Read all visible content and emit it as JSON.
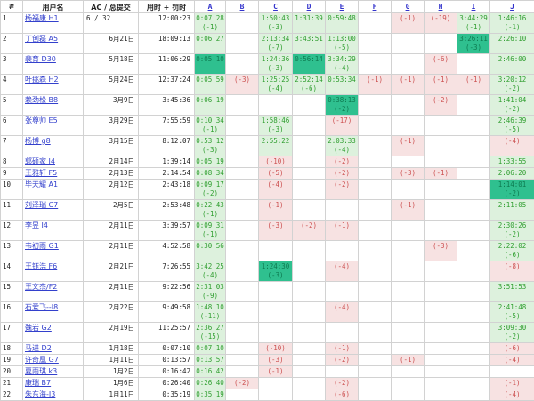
{
  "table": {
    "headers": {
      "rank": "#",
      "user": "用户名",
      "submissions": "AC / 总提交",
      "time": "用时 + 罚时"
    },
    "problems": [
      "A",
      "B",
      "C",
      "D",
      "E",
      "F",
      "G",
      "H",
      "I",
      "J"
    ],
    "colors": {
      "solved_bg": "#ddf1dd",
      "solved_text": "#2f9e2f",
      "first_solve_bg": "#2fc08f",
      "first_solve_text": "#0d7a50",
      "failed_bg": "#f7e2e2",
      "failed_text": "#cc5050",
      "link": "#3333cc"
    },
    "rows": [
      {
        "rank": "1",
        "user": "杨福康 H1",
        "sub": "6 / 32",
        "subLeft": true,
        "time": "12:00:23",
        "cells": {
          "A": {
            "t": "0:07:28",
            "p": "(-1)",
            "s": "ac"
          },
          "C": {
            "t": "1:50:43",
            "p": "(-3)",
            "s": "ac"
          },
          "D": {
            "t": "1:31:39",
            "s": "ac"
          },
          "E": {
            "t": "0:59:48",
            "s": "ac"
          },
          "G": {
            "p": "(-1)",
            "s": "fail"
          },
          "H": {
            "p": "(-19)",
            "s": "fail"
          },
          "I": {
            "t": "3:44:29",
            "p": "(-1)",
            "s": "ac"
          },
          "J": {
            "t": "1:46:16",
            "p": "(-1)",
            "s": "ac"
          }
        }
      },
      {
        "rank": "2",
        "user": "丁创磊 A5",
        "sub": "6月21日",
        "time": "18:09:13",
        "cells": {
          "A": {
            "t": "0:06:27",
            "s": "ac"
          },
          "C": {
            "t": "2:13:34",
            "p": "(-7)",
            "s": "ac"
          },
          "D": {
            "t": "3:43:51",
            "s": "ac"
          },
          "E": {
            "t": "1:13:00",
            "p": "(-5)",
            "s": "ac"
          },
          "I": {
            "t": "3:26:11",
            "p": "(-3)",
            "s": "first"
          },
          "J": {
            "t": "2:26:10",
            "s": "ac"
          }
        }
      },
      {
        "rank": "3",
        "user": "裴育 D30",
        "sub": "5月18日",
        "time": "11:06:29",
        "cells": {
          "A": {
            "t": "0:05:10",
            "s": "first"
          },
          "C": {
            "t": "1:24:36",
            "p": "(-3)",
            "s": "ac"
          },
          "D": {
            "t": "0:56:14",
            "s": "first"
          },
          "E": {
            "t": "3:34:29",
            "p": "(-4)",
            "s": "ac"
          },
          "H": {
            "p": "(-6)",
            "s": "fail"
          },
          "J": {
            "t": "2:46:00",
            "s": "ac"
          }
        }
      },
      {
        "rank": "4",
        "user": "叶挑森 H2",
        "sub": "5月24日",
        "time": "12:37:24",
        "cells": {
          "A": {
            "t": "0:05:59",
            "s": "ac"
          },
          "B": {
            "p": "(-3)",
            "s": "fail"
          },
          "C": {
            "t": "1:25:25",
            "p": "(-4)",
            "s": "ac"
          },
          "D": {
            "t": "2:52:14",
            "p": "(-6)",
            "s": "ac"
          },
          "E": {
            "t": "0:53:34",
            "s": "ac"
          },
          "F": {
            "p": "(-1)",
            "s": "fail"
          },
          "G": {
            "p": "(-1)",
            "s": "fail"
          },
          "H": {
            "p": "(-1)",
            "s": "fail"
          },
          "I": {
            "p": "(-1)",
            "s": "fail"
          },
          "J": {
            "t": "3:20:12",
            "p": "(-2)",
            "s": "ac"
          }
        }
      },
      {
        "rank": "5",
        "user": "赖劲松 B8",
        "sub": "3月9日",
        "time": "3:45:36",
        "cells": {
          "A": {
            "t": "0:06:19",
            "s": "ac"
          },
          "E": {
            "t": "0:38:13",
            "p": "(-2)",
            "s": "first"
          },
          "H": {
            "p": "(-2)",
            "s": "fail"
          },
          "J": {
            "t": "1:41:04",
            "p": "(-2)",
            "s": "ac"
          }
        }
      },
      {
        "rank": "6",
        "user": "张尊帅 E5",
        "sub": "3月29日",
        "time": "7:55:59",
        "cells": {
          "A": {
            "t": "0:10:34",
            "p": "(-1)",
            "s": "ac"
          },
          "C": {
            "t": "1:58:46",
            "p": "(-3)",
            "s": "ac"
          },
          "E": {
            "p": "(-17)",
            "s": "fail"
          },
          "J": {
            "t": "2:46:39",
            "p": "(-5)",
            "s": "ac"
          }
        }
      },
      {
        "rank": "7",
        "user": "杨博 g8",
        "sub": "3月15日",
        "time": "8:12:07",
        "cells": {
          "A": {
            "t": "0:53:12",
            "p": "(-3)",
            "s": "ac"
          },
          "C": {
            "t": "2:55:22",
            "s": "ac"
          },
          "E": {
            "t": "2:03:33",
            "p": "(-4)",
            "s": "ac"
          },
          "G": {
            "p": "(-1)",
            "s": "fail"
          },
          "J": {
            "p": "(-4)",
            "s": "fail"
          }
        }
      },
      {
        "rank": "8",
        "user": "郭硕家 I4",
        "sub": "2月14日",
        "time": "1:39:14",
        "cells": {
          "A": {
            "t": "0:05:19",
            "s": "ac"
          },
          "C": {
            "p": "(-10)",
            "s": "fail"
          },
          "E": {
            "p": "(-2)",
            "s": "fail"
          },
          "J": {
            "t": "1:33:55",
            "s": "ac"
          }
        }
      },
      {
        "rank": "9",
        "user": "王雅轩 F5",
        "sub": "2月13日",
        "time": "2:14:54",
        "cells": {
          "A": {
            "t": "0:08:34",
            "s": "ac"
          },
          "C": {
            "p": "(-5)",
            "s": "fail"
          },
          "E": {
            "p": "(-2)",
            "s": "fail"
          },
          "G": {
            "p": "(-3)",
            "s": "fail"
          },
          "H": {
            "p": "(-1)",
            "s": "fail"
          },
          "J": {
            "t": "2:06:20",
            "s": "ac"
          }
        }
      },
      {
        "rank": "10",
        "user": "毕天耀 A1",
        "sub": "2月12日",
        "time": "2:43:18",
        "cells": {
          "A": {
            "t": "0:09:17",
            "p": "(-2)",
            "s": "ac"
          },
          "C": {
            "p": "(-4)",
            "s": "fail"
          },
          "E": {
            "p": "(-2)",
            "s": "fail"
          },
          "J": {
            "t": "1:14:01",
            "p": "(-2)",
            "s": "first"
          }
        }
      },
      {
        "rank": "11",
        "user": "刘泽瑞 C7",
        "sub": "2月5日",
        "time": "2:53:48",
        "cells": {
          "A": {
            "t": "0:22:43",
            "p": "(-1)",
            "s": "ac"
          },
          "C": {
            "p": "(-1)",
            "s": "fail"
          },
          "G": {
            "p": "(-1)",
            "s": "fail"
          },
          "J": {
            "t": "2:11:05",
            "s": "ac"
          }
        }
      },
      {
        "rank": "12",
        "user": "李昱 I4",
        "sub": "2月11日",
        "time": "3:39:57",
        "cells": {
          "A": {
            "t": "0:09:31",
            "p": "(-1)",
            "s": "ac"
          },
          "C": {
            "p": "(-3)",
            "s": "fail"
          },
          "D": {
            "p": "(-2)",
            "s": "fail"
          },
          "E": {
            "p": "(-1)",
            "s": "fail"
          },
          "J": {
            "t": "2:30:26",
            "p": "(-2)",
            "s": "ac"
          }
        }
      },
      {
        "rank": "13",
        "user": "韦初雨 G1",
        "sub": "2月11日",
        "time": "4:52:58",
        "cells": {
          "A": {
            "t": "0:30:56",
            "s": "ac"
          },
          "H": {
            "p": "(-3)",
            "s": "fail"
          },
          "J": {
            "t": "2:22:02",
            "p": "(-6)",
            "s": "ac"
          }
        }
      },
      {
        "rank": "14",
        "user": "王钰浩 F6",
        "sub": "2月21日",
        "time": "7:26:55",
        "cells": {
          "A": {
            "t": "3:42:25",
            "p": "(-4)",
            "s": "ac"
          },
          "C": {
            "t": "1:24:30",
            "p": "(-3)",
            "s": "first"
          },
          "E": {
            "p": "(-4)",
            "s": "fail"
          },
          "J": {
            "p": "(-8)",
            "s": "fail"
          }
        }
      },
      {
        "rank": "15",
        "user": "王文杰/F2",
        "sub": "2月11日",
        "time": "9:22:56",
        "cells": {
          "A": {
            "t": "2:31:03",
            "p": "(-9)",
            "s": "ac"
          },
          "J": {
            "t": "3:51:53",
            "s": "ac"
          }
        }
      },
      {
        "rank": "16",
        "user": "石爱飞--I8",
        "sub": "2月22日",
        "time": "9:49:58",
        "cells": {
          "A": {
            "t": "1:48:10",
            "p": "(-11)",
            "s": "ac"
          },
          "E": {
            "p": "(-4)",
            "s": "fail"
          },
          "J": {
            "t": "2:41:48",
            "p": "(-5)",
            "s": "ac"
          }
        }
      },
      {
        "rank": "17",
        "user": "魏岩 G2",
        "sub": "2月19日",
        "time": "11:25:57",
        "cells": {
          "A": {
            "t": "2:36:27",
            "p": "(-15)",
            "s": "ac"
          },
          "J": {
            "t": "3:09:30",
            "p": "(-2)",
            "s": "ac"
          }
        }
      },
      {
        "rank": "18",
        "user": "马进 D2",
        "sub": "1月18日",
        "time": "0:07:10",
        "cells": {
          "A": {
            "t": "0:07:10",
            "s": "ac"
          },
          "C": {
            "p": "(-10)",
            "s": "fail"
          },
          "E": {
            "p": "(-1)",
            "s": "fail"
          },
          "J": {
            "p": "(-6)",
            "s": "fail"
          }
        }
      },
      {
        "rank": "19",
        "user": "许奇凰 G7",
        "sub": "1月11日",
        "time": "0:13:57",
        "cells": {
          "A": {
            "t": "0:13:57",
            "s": "ac"
          },
          "C": {
            "p": "(-3)",
            "s": "fail"
          },
          "E": {
            "p": "(-2)",
            "s": "fail"
          },
          "G": {
            "p": "(-1)",
            "s": "fail"
          },
          "J": {
            "p": "(-4)",
            "s": "fail"
          }
        }
      },
      {
        "rank": "20",
        "user": "夏雨琪 k3",
        "sub": "1月2日",
        "time": "0:16:42",
        "cells": {
          "A": {
            "t": "0:16:42",
            "s": "ac"
          },
          "C": {
            "p": "(-1)",
            "s": "fail"
          }
        }
      },
      {
        "rank": "21",
        "user": "康瑞 B7",
        "sub": "1月6日",
        "time": "0:26:40",
        "cells": {
          "A": {
            "t": "0:26:40",
            "s": "ac"
          },
          "B": {
            "p": "(-2)",
            "s": "fail"
          },
          "E": {
            "p": "(-2)",
            "s": "fail"
          },
          "J": {
            "p": "(-1)",
            "s": "fail"
          }
        }
      },
      {
        "rank": "22",
        "user": "朱东海-I3",
        "sub": "1月11日",
        "time": "0:35:19",
        "cells": {
          "A": {
            "t": "0:35:19",
            "s": "ac"
          },
          "E": {
            "p": "(-6)",
            "s": "fail"
          },
          "J": {
            "p": "(-4)",
            "s": "fail"
          }
        }
      }
    ]
  }
}
